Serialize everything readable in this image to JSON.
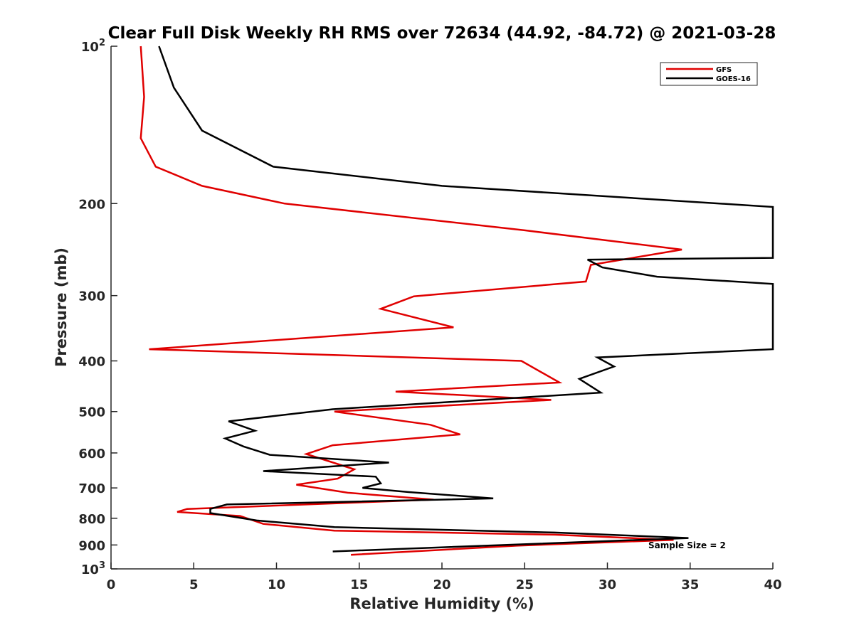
{
  "chart_data": {
    "type": "line",
    "title": "Clear Full Disk Weekly RH RMS over 72634 (44.92, -84.72) @ 2021-03-28",
    "xlabel": "Relative Humidity (%)",
    "ylabel": "Pressure (mb)",
    "xlim": [
      0,
      40
    ],
    "ylim": [
      100,
      1000
    ],
    "yscale": "log",
    "y_reversed": true,
    "xticks": [
      {
        "value": 0,
        "label": "0"
      },
      {
        "value": 5,
        "label": "5"
      },
      {
        "value": 10,
        "label": "10"
      },
      {
        "value": 15,
        "label": "15"
      },
      {
        "value": 20,
        "label": "20"
      },
      {
        "value": 25,
        "label": "25"
      },
      {
        "value": 30,
        "label": "30"
      },
      {
        "value": 35,
        "label": "35"
      },
      {
        "value": 40,
        "label": "40"
      }
    ],
    "yticks": [
      {
        "value": 100,
        "base": "10",
        "exp": "2"
      },
      {
        "value": 200,
        "label": "200"
      },
      {
        "value": 300,
        "label": "300"
      },
      {
        "value": 400,
        "label": "400"
      },
      {
        "value": 500,
        "label": "500"
      },
      {
        "value": 600,
        "label": "600"
      },
      {
        "value": 700,
        "label": "700"
      },
      {
        "value": 800,
        "label": "800"
      },
      {
        "value": 900,
        "label": "900"
      },
      {
        "value": 1000,
        "base": "10",
        "exp": "3"
      }
    ],
    "legend_position": "top-right",
    "annotation": "Sample Size = 2",
    "series": [
      {
        "name": "GFS",
        "color": "#e00000",
        "points": [
          [
            1.8,
            100
          ],
          [
            2.0,
            125
          ],
          [
            1.8,
            150
          ],
          [
            2.7,
            170
          ],
          [
            5.5,
            185
          ],
          [
            10.5,
            200
          ],
          [
            25,
            225
          ],
          [
            34.5,
            245
          ],
          [
            29,
            262
          ],
          [
            28.7,
            282
          ],
          [
            18.3,
            301
          ],
          [
            16.3,
            318
          ],
          [
            20.7,
            345
          ],
          [
            2.3,
            380
          ],
          [
            24.8,
            400
          ],
          [
            27.1,
            440
          ],
          [
            17.2,
            458
          ],
          [
            26.6,
            475
          ],
          [
            13.5,
            500
          ],
          [
            19.3,
            530
          ],
          [
            21.1,
            553
          ],
          [
            13.4,
            580
          ],
          [
            11.8,
            603
          ],
          [
            14.7,
            645
          ],
          [
            13.7,
            672
          ],
          [
            11.2,
            690
          ],
          [
            14.3,
            715
          ],
          [
            19.5,
            737
          ],
          [
            4.6,
            768
          ],
          [
            4.0,
            778
          ],
          [
            7.8,
            792
          ],
          [
            9.2,
            820
          ],
          [
            13.5,
            845
          ],
          [
            26.8,
            860
          ],
          [
            34.0,
            880
          ],
          [
            24.5,
            903
          ],
          [
            14.5,
            940
          ]
        ]
      },
      {
        "name": "GOES-16",
        "color": "#000000",
        "points": [
          [
            2.9,
            100
          ],
          [
            3.8,
            120
          ],
          [
            5.5,
            145
          ],
          [
            9.8,
            170
          ],
          [
            20,
            185
          ],
          [
            40,
            203
          ],
          [
            40,
            254
          ],
          [
            28.8,
            256
          ],
          [
            29.7,
            265
          ],
          [
            33,
            276
          ],
          [
            40,
            285
          ],
          [
            40,
            380
          ],
          [
            29.4,
            394
          ],
          [
            30.4,
            410
          ],
          [
            28.3,
            433
          ],
          [
            29.6,
            460
          ],
          [
            13.4,
            495
          ],
          [
            7.1,
            522
          ],
          [
            8.7,
            544
          ],
          [
            6.9,
            563
          ],
          [
            8.0,
            583
          ],
          [
            9.6,
            605
          ],
          [
            16.8,
            626
          ],
          [
            9.2,
            650
          ],
          [
            16.0,
            666
          ],
          [
            16.3,
            686
          ],
          [
            15.2,
            700
          ],
          [
            18.0,
            713
          ],
          [
            23.1,
            733
          ],
          [
            7.0,
            753
          ],
          [
            6.0,
            768
          ],
          [
            6.0,
            782
          ],
          [
            8.8,
            808
          ],
          [
            13.5,
            832
          ],
          [
            26.8,
            852
          ],
          [
            34.9,
            873
          ],
          [
            13.4,
            926
          ]
        ]
      }
    ]
  }
}
